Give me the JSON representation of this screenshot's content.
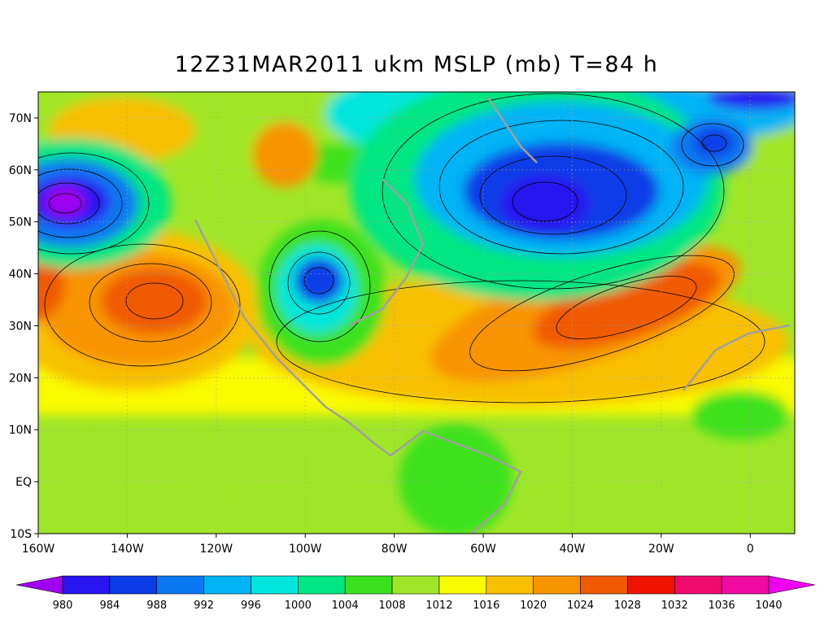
{
  "title": "12Z31MAR2011 ukm MSLP (mb) T=84 h",
  "map": {
    "xlim": [
      -160,
      10
    ],
    "ylim": [
      -10,
      75
    ],
    "xticks": [
      {
        "value": -160,
        "label": "160W"
      },
      {
        "value": -140,
        "label": "140W"
      },
      {
        "value": -120,
        "label": "120W"
      },
      {
        "value": -100,
        "label": "100W"
      },
      {
        "value": -80,
        "label": "80W"
      },
      {
        "value": -60,
        "label": "60W"
      },
      {
        "value": -40,
        "label": "40W"
      },
      {
        "value": -20,
        "label": "20W"
      },
      0
    ],
    "yticks": [
      {
        "value": -10,
        "label": "10S"
      },
      {
        "value": 0,
        "label": "EQ"
      },
      {
        "value": 10,
        "label": "10N"
      },
      {
        "value": 20,
        "label": "20N"
      },
      {
        "value": 30,
        "label": "30N"
      },
      {
        "value": 40,
        "label": "40N"
      },
      {
        "value": 50,
        "label": "50N"
      },
      {
        "value": 60,
        "label": "60N"
      },
      {
        "value": 70,
        "label": "70N"
      }
    ],
    "grid": true
  },
  "colorbar": {
    "levels": [
      980,
      984,
      988,
      992,
      996,
      1000,
      1004,
      1008,
      1012,
      1016,
      1020,
      1024,
      1028,
      1032,
      1036,
      1040
    ],
    "colors": [
      "#a000f0",
      "#2814f0",
      "#0a3ce6",
      "#0a78f0",
      "#00b4f5",
      "#00e6dc",
      "#00e682",
      "#3ce11e",
      "#a0e628",
      "#fafa00",
      "#f8c000",
      "#f89400",
      "#f05a00",
      "#f01400",
      "#f00a6e",
      "#f00aa0",
      "#f000f0"
    ]
  }
}
